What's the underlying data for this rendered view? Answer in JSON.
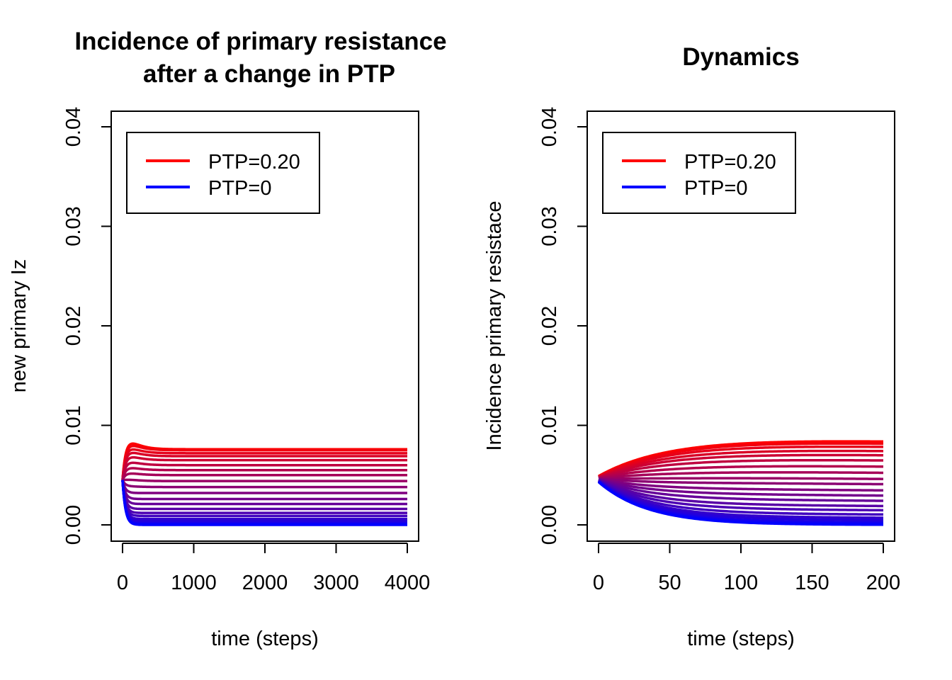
{
  "chart_data": [
    {
      "type": "line",
      "title_lines": [
        "Incidence of primary resistance",
        "after a change in PTP"
      ],
      "xlabel": "time (steps)",
      "ylabel": "new primary Iz",
      "xlim": [
        0,
        4000
      ],
      "ylim": [
        0,
        0.04
      ],
      "xticks": [
        "0",
        "1000",
        "2000",
        "3000",
        "4000"
      ],
      "yticks": [
        "0.00",
        "0.01",
        "0.02",
        "0.03",
        "0.04"
      ],
      "legend": {
        "position": "top-left",
        "entries": [
          {
            "label": "PTP=0.20",
            "color": "#ff0000"
          },
          {
            "label": "PTP=0",
            "color": "#0000ff"
          }
        ]
      },
      "series_family": {
        "count": 21,
        "parameter": "PTP",
        "color_from": "#ff0000",
        "color_to": "#0000ff",
        "start_value": 0.0045,
        "equilibria": [
          0.0076,
          0.0075,
          0.0072,
          0.0069,
          0.0065,
          0.006,
          0.0055,
          0.005,
          0.0044,
          0.0038,
          0.0032,
          0.0026,
          0.0021,
          0.0016,
          0.0012,
          0.0009,
          0.0006,
          0.0004,
          0.0002,
          0.0001,
          0.0
        ],
        "top_curve_peak": {
          "x": 100,
          "y": 0.0083
        },
        "x_end": 4000
      }
    },
    {
      "type": "line",
      "title_lines": [
        "Dynamics"
      ],
      "xlabel": "time (steps)",
      "ylabel": "Incidence primary resistace",
      "xlim": [
        0,
        200
      ],
      "ylim": [
        0,
        0.04
      ],
      "xticks": [
        "0",
        "50",
        "100",
        "150",
        "200"
      ],
      "yticks": [
        "0.00",
        "0.01",
        "0.02",
        "0.03",
        "0.04"
      ],
      "legend": {
        "position": "top-left",
        "entries": [
          {
            "label": "PTP=0.20",
            "color": "#ff0000"
          },
          {
            "label": "PTP=0",
            "color": "#0000ff"
          }
        ]
      },
      "series_family": {
        "count": 21,
        "parameter": "PTP",
        "color_from": "#ff0000",
        "color_to": "#0000ff",
        "start_value_top": 0.0049,
        "start_value_bottom": 0.0043,
        "end_values": [
          0.0079,
          0.0077,
          0.0074,
          0.007,
          0.0066,
          0.0061,
          0.0055,
          0.0049,
          0.0043,
          0.0038,
          0.0032,
          0.0027,
          0.0022,
          0.0017,
          0.0013,
          0.0009,
          0.0006,
          0.0004,
          0.0002,
          0.0001,
          0.0
        ],
        "top_curve_peak": {
          "x": 120,
          "y": 0.0083
        },
        "x_end": 200
      }
    }
  ]
}
